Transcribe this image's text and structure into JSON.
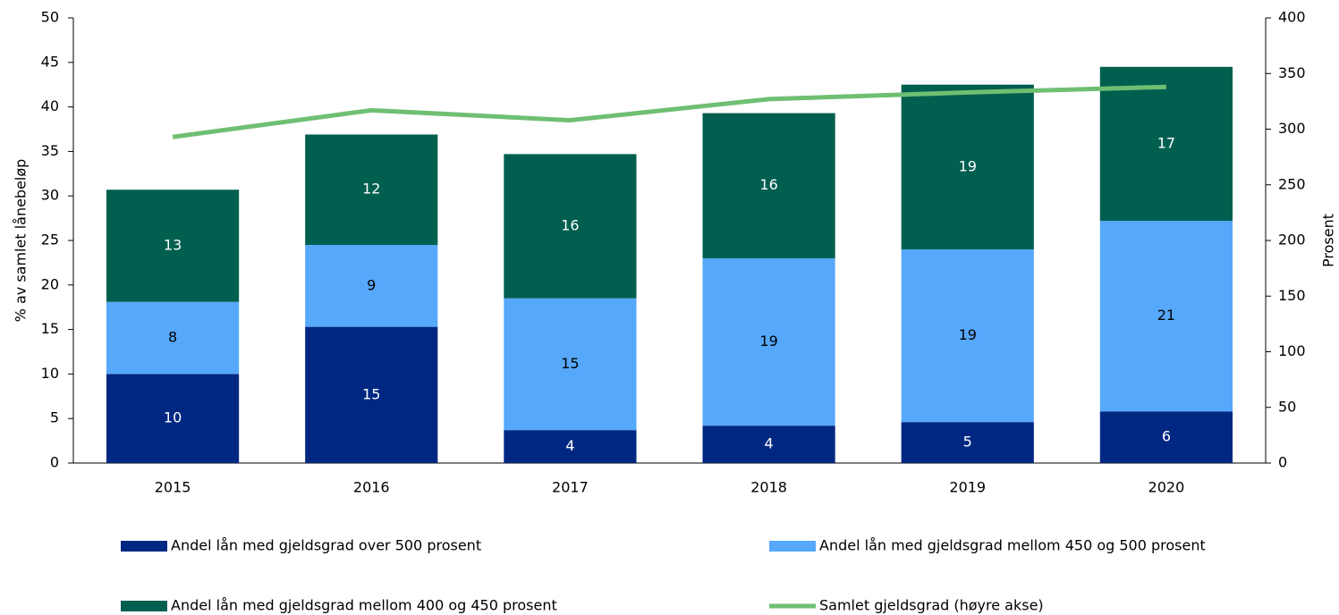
{
  "chart_data": {
    "type": "bar",
    "stacked": true,
    "categories": [
      "2015",
      "2016",
      "2017",
      "2018",
      "2019",
      "2020"
    ],
    "ylabel": "% av samlet lånebeløp",
    "y2label": "Prosent",
    "ylim": [
      0,
      50
    ],
    "yticks": [
      0,
      5,
      10,
      15,
      20,
      25,
      30,
      35,
      40,
      45,
      50
    ],
    "y2lim": [
      0,
      400
    ],
    "y2ticks": [
      0,
      50,
      100,
      150,
      200,
      250,
      300,
      350,
      400
    ],
    "series": [
      {
        "name": "Andel lån med gjeldsgrad over 500 prosent",
        "color": "#002882",
        "label_color": "#ffffff",
        "values": [
          10.0,
          15.3,
          3.7,
          4.2,
          4.6,
          5.8
        ],
        "value_labels": [
          "10",
          "15",
          "4",
          "4",
          "5",
          "6"
        ]
      },
      {
        "name": "Andel lån med gjeldsgrad mellom 450 og 500 prosent",
        "color": "#56a8fb",
        "label_color": "#000000",
        "values": [
          8.1,
          9.2,
          14.8,
          18.8,
          19.4,
          21.4
        ],
        "value_labels": [
          "8",
          "9",
          "15",
          "19",
          "19",
          "21"
        ]
      },
      {
        "name": "Andel lån med gjeldsgrad mellom 400 og 450 prosent",
        "color": "#005f4f",
        "label_color": "#ffffff",
        "values": [
          12.6,
          12.4,
          16.2,
          16.3,
          18.5,
          17.3
        ],
        "value_labels": [
          "13",
          "12",
          "16",
          "16",
          "19",
          "17"
        ]
      },
      {
        "name": "Samlet gjeldsgrad (høyre akse)",
        "color": "#6fbf73",
        "type": "line",
        "axis": "y2",
        "values": [
          293,
          317,
          308,
          327,
          333,
          338
        ]
      }
    ]
  }
}
